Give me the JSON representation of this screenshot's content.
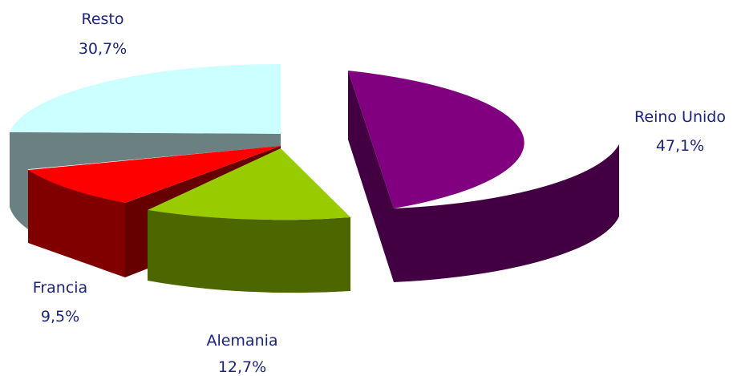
{
  "chart_data": {
    "type": "pie",
    "title": "",
    "slices": [
      {
        "name": "Reino Unido",
        "value": 47.1,
        "label": "47,1%",
        "color": "#800080",
        "side_color": "#420042"
      },
      {
        "name": "Alemania",
        "value": 12.7,
        "label": "12,7%",
        "color": "#99cc00",
        "side_color": "#4c6600"
      },
      {
        "name": "Francia",
        "value": 9.5,
        "label": "9,5%",
        "color": "#ff0000",
        "side_color": "#800000"
      },
      {
        "name": "Resto",
        "value": 30.7,
        "label": "30,7%",
        "color": "#ccffff",
        "side_color": "#6b8080"
      }
    ],
    "style": "3d-exploded",
    "legend": "none"
  }
}
